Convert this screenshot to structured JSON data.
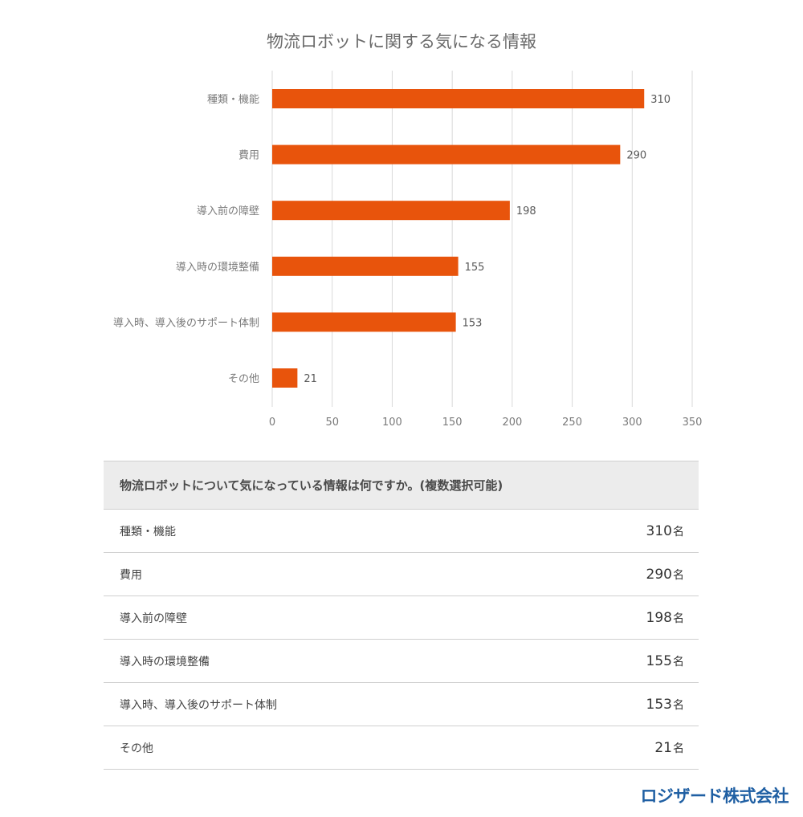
{
  "chart_data": {
    "type": "bar",
    "orientation": "horizontal",
    "title": "物流ロボットに関する気になる情報",
    "categories": [
      "種類・機能",
      "費用",
      "導入前の障壁",
      "導入時の環境整備",
      "導入時、導入後のサポート体制",
      "その他"
    ],
    "values": [
      310,
      290,
      198,
      155,
      153,
      21
    ],
    "xlim": [
      0,
      350
    ],
    "xticks": [
      0,
      50,
      100,
      150,
      200,
      250,
      300,
      350
    ],
    "grid": true,
    "bar_color": "#e8540c",
    "data_labels": true
  },
  "table": {
    "header": "物流ロボットについて気になっている情報は何ですか。(複数選択可能)",
    "unit": "名",
    "rows": [
      {
        "label": "種類・機能",
        "value": "310"
      },
      {
        "label": "費用",
        "value": "290"
      },
      {
        "label": "導入前の障壁",
        "value": "198"
      },
      {
        "label": "導入時の環境整備",
        "value": "155"
      },
      {
        "label": "導入時、導入後のサポート体制",
        "value": "153"
      },
      {
        "label": "その他",
        "value": "21"
      }
    ]
  },
  "logo": {
    "text": "ロジザード株式会社",
    "color": "#1f5fa3"
  }
}
